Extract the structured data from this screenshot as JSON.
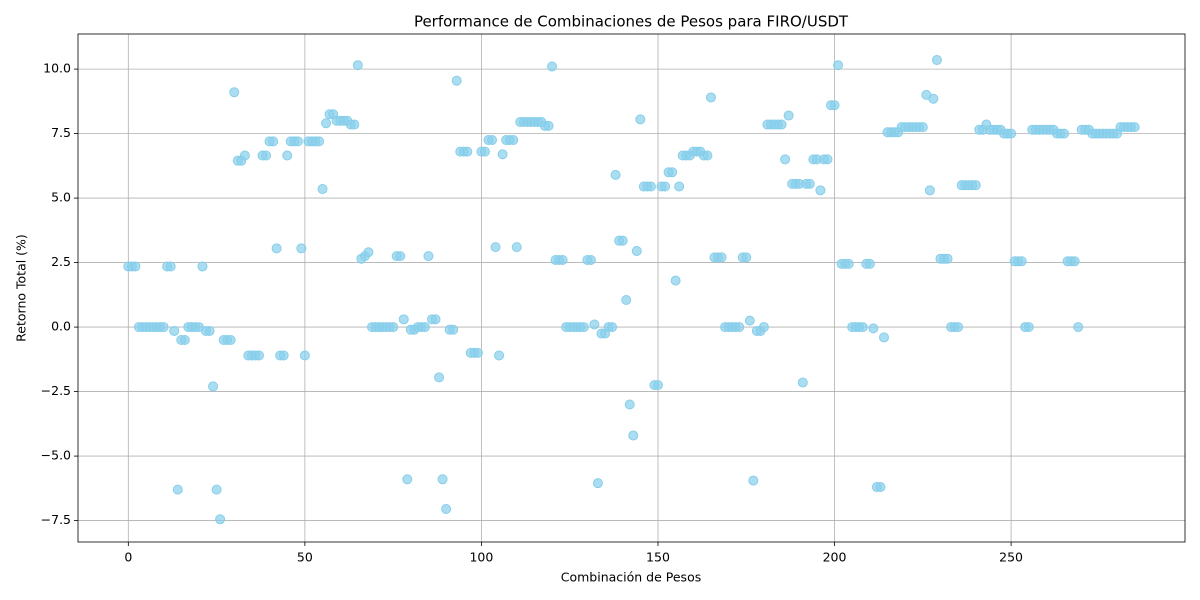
{
  "chart_data": {
    "type": "scatter",
    "title": "Performance de Combinaciones de Pesos para FIRO/USDT",
    "x_label": "Combinación de Pesos",
    "y_label": "Retorno Total (%)",
    "color": "#87ceeb",
    "grid": true,
    "xlim": [
      -14.25,
      299.25
    ],
    "ylim": [
      -8.33,
      11.36
    ],
    "xticks": [
      0,
      50,
      100,
      150,
      200,
      250
    ],
    "yticks": [
      {
        "value": -7.5,
        "label": "−7.5"
      },
      {
        "value": -5,
        "label": "−5.0"
      },
      {
        "value": -2.5,
        "label": "−2.5"
      },
      {
        "value": 0,
        "label": "0.0"
      },
      2.5,
      {
        "value": 5,
        "label": "5.0"
      },
      7.5,
      {
        "value": 10,
        "label": "10.0"
      }
    ],
    "x": [
      0,
      1,
      2,
      3,
      4,
      5,
      6,
      7,
      8,
      9,
      10,
      11,
      12,
      13,
      14,
      15,
      16,
      17,
      18,
      19,
      20,
      21,
      22,
      23,
      24,
      25,
      26,
      27,
      28,
      29,
      30,
      31,
      32,
      33,
      34,
      35,
      36,
      37,
      38,
      39,
      40,
      41,
      42,
      43,
      44,
      45,
      46,
      47,
      48,
      49,
      50,
      51,
      52,
      53,
      54,
      55,
      56,
      57,
      58,
      59,
      60,
      61,
      62,
      63,
      64,
      65,
      66,
      67,
      68,
      69,
      70,
      71,
      72,
      73,
      74,
      75,
      76,
      77,
      78,
      79,
      80,
      81,
      82,
      83,
      84,
      85,
      86,
      87,
      88,
      89,
      90,
      91,
      92,
      93,
      94,
      95,
      96,
      97,
      98,
      99,
      100,
      101,
      102,
      103,
      104,
      105,
      106,
      107,
      108,
      109,
      110,
      111,
      112,
      113,
      114,
      115,
      116,
      117,
      118,
      119,
      120,
      121,
      122,
      123,
      124,
      125,
      126,
      127,
      128,
      129,
      130,
      131,
      132,
      133,
      134,
      135,
      136,
      137,
      138,
      139,
      140,
      141,
      142,
      143,
      144,
      145,
      146,
      147,
      148,
      149,
      150,
      151,
      152,
      153,
      154,
      155,
      156,
      157,
      158,
      159,
      160,
      161,
      162,
      163,
      164,
      165,
      166,
      167,
      168,
      169,
      170,
      171,
      172,
      173,
      174,
      175,
      176,
      177,
      178,
      179,
      180,
      181,
      182,
      183,
      184,
      185,
      186,
      187,
      188,
      189,
      190,
      191,
      192,
      193,
      194,
      195,
      196,
      197,
      198,
      199,
      200,
      201,
      202,
      203,
      204,
      205,
      206,
      207,
      208,
      209,
      210,
      211,
      212,
      213,
      214,
      215,
      216,
      217,
      218,
      219,
      220,
      221,
      222,
      223,
      224,
      225,
      226,
      227,
      228,
      229,
      230,
      231,
      232,
      233,
      234,
      235,
      236,
      237,
      238,
      239,
      240,
      241,
      242,
      243,
      244,
      245,
      246,
      247,
      248,
      249,
      250,
      251,
      252,
      253,
      254,
      255,
      256,
      257,
      258,
      259,
      260,
      261,
      262,
      263,
      264,
      265,
      266,
      267,
      268,
      269,
      270,
      271,
      272,
      273,
      274,
      275,
      276,
      277,
      278,
      279,
      280,
      281,
      282,
      283,
      284,
      285
    ],
    "values": [
      2.35,
      2.35,
      2.35,
      0,
      0,
      0,
      0,
      0,
      0,
      0,
      0,
      2.35,
      2.35,
      -0.15,
      -6.3,
      -0.5,
      -0.5,
      0,
      0,
      0,
      0,
      2.35,
      -0.15,
      -0.15,
      -2.3,
      -6.3,
      -7.45,
      -0.5,
      -0.5,
      -0.5,
      9.1,
      6.45,
      6.45,
      6.65,
      -1.1,
      -1.1,
      -1.1,
      -1.1,
      6.65,
      6.65,
      7.2,
      7.2,
      3.05,
      -1.1,
      -1.1,
      6.65,
      7.2,
      7.2,
      7.2,
      3.05,
      -1.1,
      7.2,
      7.2,
      7.2,
      7.2,
      5.35,
      7.9,
      8.25,
      8.25,
      8.0,
      8.0,
      8.0,
      8.0,
      7.85,
      7.85,
      10.15,
      2.65,
      2.75,
      2.9,
      0,
      0,
      0,
      0,
      0,
      0,
      0,
      2.75,
      2.75,
      0.3,
      -5.9,
      -0.1,
      -0.1,
      0,
      0,
      0,
      2.75,
      0.3,
      0.3,
      -1.95,
      -5.9,
      -7.05,
      -0.1,
      -0.1,
      9.55,
      6.8,
      6.8,
      6.8,
      -1.0,
      -1.0,
      -1.0,
      6.8,
      6.8,
      7.25,
      7.25,
      3.1,
      -1.1,
      6.7,
      7.25,
      7.25,
      7.25,
      3.1,
      7.95,
      7.95,
      7.95,
      7.95,
      7.95,
      7.95,
      7.95,
      7.8,
      7.8,
      10.1,
      2.6,
      2.6,
      2.6,
      0,
      0,
      0,
      0,
      0,
      0,
      2.6,
      2.6,
      0.1,
      -6.05,
      -0.25,
      -0.25,
      0,
      0,
      5.9,
      3.35,
      3.35,
      1.05,
      -3.0,
      -4.2,
      2.95,
      8.05,
      5.45,
      5.45,
      5.45,
      -2.25,
      -2.25,
      5.45,
      5.45,
      6.0,
      6.0,
      1.8,
      5.45,
      6.65,
      6.65,
      6.65,
      6.8,
      6.8,
      6.8,
      6.65,
      6.65,
      8.9,
      2.7,
      2.7,
      2.7,
      0,
      0,
      0,
      0,
      0,
      2.7,
      2.7,
      0.25,
      -5.95,
      -0.15,
      -0.15,
      0,
      7.85,
      7.85,
      7.85,
      7.85,
      7.85,
      6.5,
      8.2,
      5.55,
      5.55,
      5.55,
      -2.15,
      5.55,
      5.55,
      6.5,
      6.5,
      5.3,
      6.5,
      6.5,
      8.6,
      8.6,
      10.15,
      2.45,
      2.45,
      2.45,
      0,
      0,
      0,
      0,
      2.45,
      2.45,
      -0.05,
      -6.2,
      -6.2,
      -0.4,
      7.55,
      7.55,
      7.55,
      7.55,
      7.75,
      7.75,
      7.75,
      7.75,
      7.75,
      7.75,
      7.75,
      9.0,
      5.3,
      8.85,
      10.35,
      2.65,
      2.65,
      2.65,
      0,
      0,
      0,
      5.5,
      5.5,
      5.5,
      5.5,
      5.5,
      7.65,
      7.65,
      7.85,
      7.65,
      7.65,
      7.65,
      7.65,
      7.5,
      7.5,
      7.5,
      2.55,
      2.55,
      2.55,
      0,
      0,
      7.65,
      7.65,
      7.65,
      7.65,
      7.65,
      7.65,
      7.65,
      7.5,
      7.5,
      7.5,
      2.55,
      2.55,
      2.55,
      0,
      7.65,
      7.65,
      7.65,
      7.5,
      7.5,
      7.5,
      7.5,
      7.5,
      7.5,
      7.5,
      7.5,
      7.75,
      7.75,
      7.75,
      7.75,
      7.75
    ]
  }
}
